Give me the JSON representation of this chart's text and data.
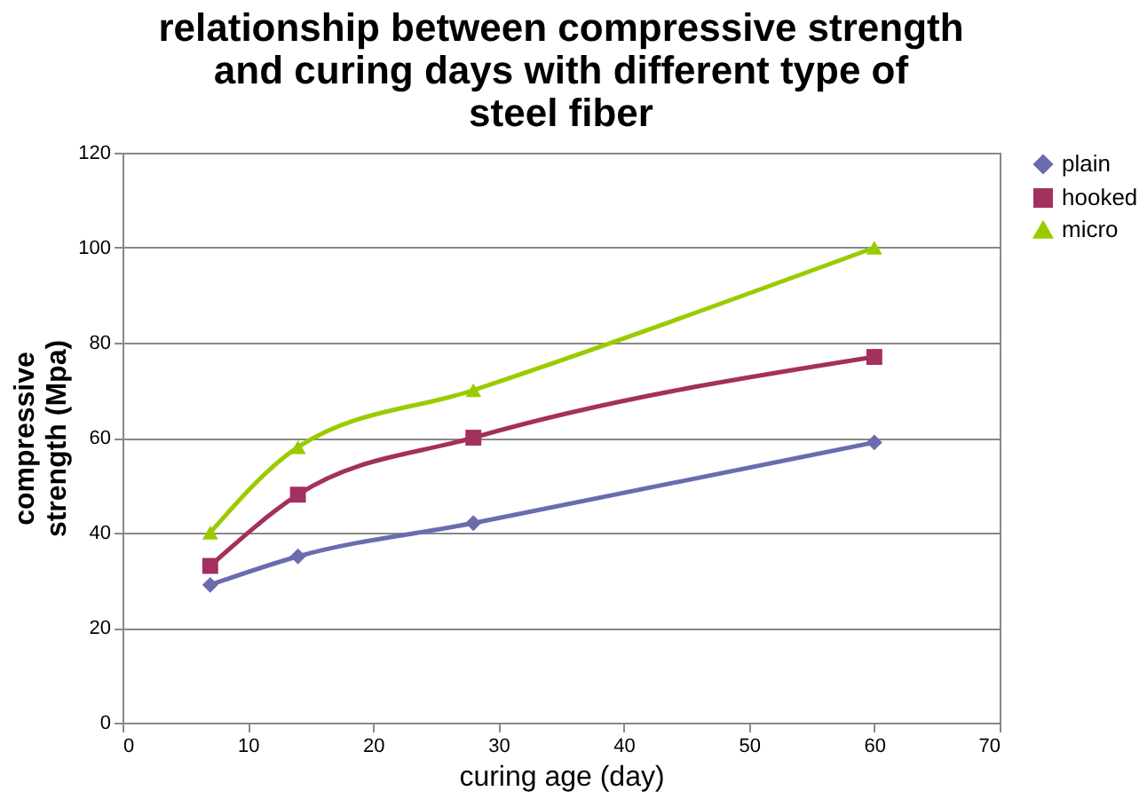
{
  "chart_data": {
    "type": "line",
    "title": "relationship between compressive strength and curing days with different type of steel fiber",
    "xlabel": "curing age (day)",
    "ylabel": "compressive strength (Mpa)",
    "x": [
      7,
      14,
      28,
      60
    ],
    "series": [
      {
        "name": "plain",
        "color": "#6b6bb0",
        "marker": "diamond",
        "values": [
          29,
          35,
          42,
          59
        ]
      },
      {
        "name": "hooked",
        "color": "#a3305e",
        "marker": "square",
        "values": [
          33,
          48,
          60,
          77
        ]
      },
      {
        "name": "micro",
        "color": "#99cc00",
        "marker": "triangle",
        "values": [
          40,
          58,
          70,
          100
        ]
      }
    ],
    "xlim": [
      0,
      70
    ],
    "xticks": [
      0,
      10,
      20,
      30,
      40,
      50,
      60,
      70
    ],
    "ylim": [
      0,
      120
    ],
    "yticks": [
      0,
      20,
      40,
      60,
      80,
      100,
      120
    ],
    "grid": "y",
    "legend": "right",
    "line_style": "solid"
  }
}
